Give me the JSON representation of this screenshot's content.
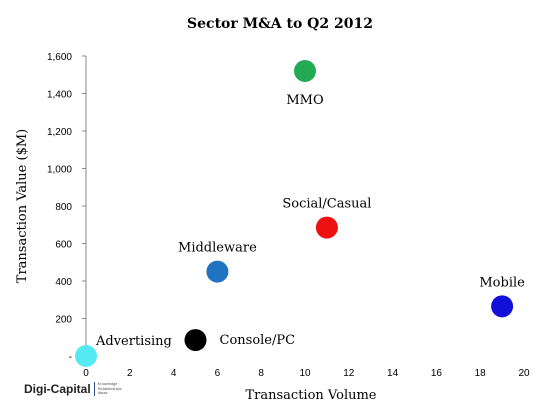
{
  "chart_data": {
    "type": "scatter",
    "title": "Sector M&A to Q2 2012",
    "xlabel": "Transaction Volume",
    "ylabel": "Transaction Value ($M)",
    "xlim": [
      0,
      20
    ],
    "ylim": [
      0,
      1600
    ],
    "x_ticks": [
      "0",
      "2",
      "4",
      "6",
      "8",
      "10",
      "12",
      "14",
      "16",
      "18",
      "20"
    ],
    "y_ticks": [
      "-",
      "200",
      "400",
      "600",
      "800",
      "1,000",
      "1,200",
      "1,400",
      "1,600"
    ],
    "grid": false,
    "legend": false,
    "points": [
      {
        "label": "MMO",
        "x": 10,
        "y": 1520,
        "color": "#22aa55",
        "label_pos": "below"
      },
      {
        "label": "Social/Casual",
        "x": 11,
        "y": 685,
        "color": "#ee1111",
        "label_pos": "above"
      },
      {
        "label": "Middleware",
        "x": 6,
        "y": 450,
        "color": "#1f73c1",
        "label_pos": "above"
      },
      {
        "label": "Mobile",
        "x": 19,
        "y": 265,
        "color": "#1010d8",
        "label_pos": "above"
      },
      {
        "label": "Console/PC",
        "x": 5,
        "y": 85,
        "color": "#000000",
        "label_pos": "right"
      },
      {
        "label": "Advertising",
        "x": 0,
        "y": 0,
        "color": "#55eaf2",
        "label_pos": "above-right"
      }
    ]
  },
  "branding": {
    "name": "Digi-Capital",
    "tagline": [
      "Knowledge",
      "Relationships",
      "Ideas"
    ]
  }
}
